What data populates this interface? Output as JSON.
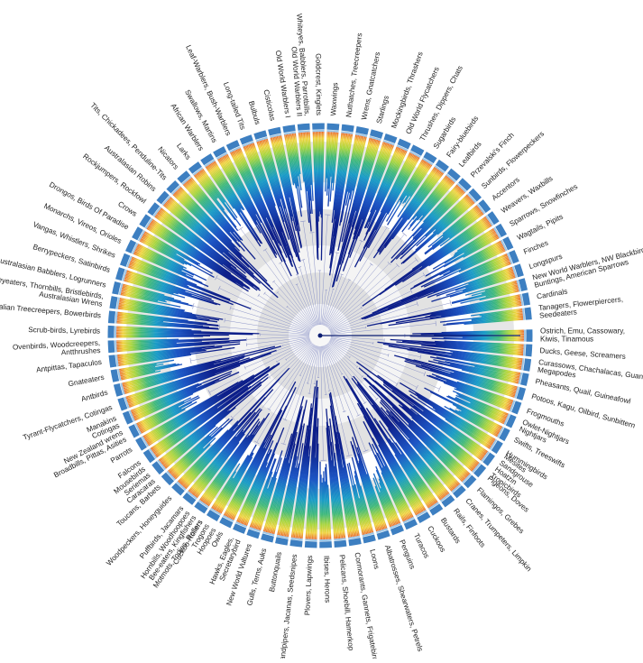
{
  "figure": {
    "colors": {
      "ring_band": "#3d7fc1",
      "ring_inner": "#9ec7e6",
      "background_ring": "#dedede",
      "branch_dark": "#0b1d72",
      "branch_light": "#8d95c8",
      "tip_gradient": [
        "#0d1f8a",
        "#1c55c4",
        "#1a9cc7",
        "#3fb97a",
        "#a9d63b",
        "#f0d23b",
        "#f39a2b",
        "#e6502a"
      ]
    },
    "clades": [
      {
        "label": "Ostrich, Emu, Cassowary, Kiwis, Tinamous",
        "lines": [
          "Ostrich, Emu, Cassowary,",
          "Kiwis, Tinamous"
        ]
      },
      {
        "label": "Ducks, Geese, Screamers",
        "lines": [
          "Ducks, Geese, Screamers"
        ]
      },
      {
        "label": "Curassows, Chachalacas, Guans, Megapodes",
        "lines": [
          "Curassows, Chachalacas, Guans",
          "Megapodes"
        ]
      },
      {
        "label": "Pheasants, Quail, Guineafowl",
        "lines": [
          "Pheasants, Quail, Guineafowl"
        ]
      },
      {
        "label": "Potoos, Kagu, Oilbird, Sunbittern",
        "lines": [
          "Potoos, Kagu, Oilbird, Sunbittern"
        ]
      },
      {
        "label": "Frogmouths",
        "lines": [
          "Frogmouths"
        ]
      },
      {
        "label": "Owlet-Nightjars, Nightjars",
        "lines": [
          "Owlet-Nightjars",
          "Nightjars"
        ]
      },
      {
        "label": "Swifts, Treeswifts",
        "lines": [
          "Swifts, Treeswifts"
        ]
      },
      {
        "label": "Hummingbirds",
        "lines": [
          "Hummingbirds"
        ]
      },
      {
        "label": "Mesites, Sandgrouse, Hoatzin, Tropicbirds",
        "lines": [
          "Mesites",
          "Sandgrouse",
          "Hoatzin",
          "Tropicbirds"
        ]
      },
      {
        "label": "Pigeons, Doves",
        "lines": [
          "Pigeons, Doves"
        ]
      },
      {
        "label": "Flamingos, Grebes",
        "lines": [
          "Flamingos, Grebes"
        ]
      },
      {
        "label": "Cranes, Trumpeters, Limpkin",
        "lines": [
          "Cranes, Trumpeters, Limpkin"
        ]
      },
      {
        "label": "Rails, Finfoots",
        "lines": [
          "Rails, Finfoots"
        ]
      },
      {
        "label": "Bustards",
        "lines": [
          "Bustards"
        ]
      },
      {
        "label": "Cuckoos",
        "lines": [
          "Cuckoos"
        ]
      },
      {
        "label": "Turacos",
        "lines": [
          "Turacos"
        ]
      },
      {
        "label": "Penguins",
        "lines": [
          "Penguins"
        ]
      },
      {
        "label": "Albatrosses, Shearwaters, Petrels",
        "lines": [
          "Albatrosses, Shearwaters, Petrels"
        ]
      },
      {
        "label": "Loons",
        "lines": [
          "Loons"
        ]
      },
      {
        "label": "Cormorants, Gannets, Frigatebirds",
        "lines": [
          "Cormorants, Gannets, Frigatebirds"
        ]
      },
      {
        "label": "Pelicans, Shoebill, Hamerkop",
        "lines": [
          "Pelicans, Shoebill, Hamerkop"
        ]
      },
      {
        "label": "Ibises, Herons",
        "lines": [
          "Ibises, Herons"
        ]
      },
      {
        "label": "Plovers, Lapwings",
        "lines": [
          "Plovers, Lapwings"
        ]
      },
      {
        "label": "Sandpipers, Jacanas, Seedsnipes",
        "lines": [
          "Sandpipers, Jacanas, Seedsnipes"
        ]
      },
      {
        "label": "Buttonquails",
        "lines": [
          "Buttonquails"
        ]
      },
      {
        "label": "Gulls, Terns, Auks",
        "lines": [
          "Gulls, Terns, Auks"
        ]
      },
      {
        "label": "New World Vultures",
        "lines": [
          "New World Vultures"
        ]
      },
      {
        "label": "Hawks, Eagles, Secretarybird",
        "lines": [
          "Hawks, Eagles,",
          "Secretarybird"
        ]
      },
      {
        "label": "Owls",
        "lines": [
          "Owls"
        ]
      },
      {
        "label": "Cuckoo-Rollers, Trogons, Hoopoes",
        "lines": [
          "Cuckoo-Rollers",
          "Trogons",
          "Hoopoes"
        ]
      },
      {
        "label": "Hornbills, Woodhoopoes, Bee-eaters, Kingfishers, Motmots, Todies, Rollers",
        "lines": [
          "Hornbills, Woodhoopoes",
          "Bee-eaters, Kingfishers",
          "Motmots, Todies, Rollers"
        ]
      },
      {
        "label": "Puffbirds, Jacamars",
        "lines": [
          "Puffbirds, Jacamars"
        ]
      },
      {
        "label": "Woodpeckers, Honeyguides",
        "lines": [
          "Woodpeckers, Honeyguides"
        ]
      },
      {
        "label": "Toucans, Barbets",
        "lines": [
          "Toucans, Barbets"
        ]
      },
      {
        "label": "Mousebirds, Seriemas, Caracaras",
        "lines": [
          "Mousebirds",
          "Seriemas",
          "Caracaras"
        ]
      },
      {
        "label": "Falcons",
        "lines": [
          "Falcons"
        ]
      },
      {
        "label": "Parrots",
        "lines": [
          "Parrots"
        ]
      },
      {
        "label": "New Zealand wrens, Broadbills, Pittas, Asities",
        "lines": [
          "New Zealand wrens",
          "Broadbills, Pittas, Asities"
        ]
      },
      {
        "label": "Manakins, Cotingas",
        "lines": [
          "Manakins",
          "Cotingas"
        ]
      },
      {
        "label": "Tyrant-Flycatchers, Cotingas",
        "lines": [
          "Tyrant-Flycatchers, Cotingas"
        ]
      },
      {
        "label": "Antbirds",
        "lines": [
          "Antbirds"
        ]
      },
      {
        "label": "Gnateaters",
        "lines": [
          "Gnateaters"
        ]
      },
      {
        "label": "Antpittas, Tapaculos",
        "lines": [
          "Antpittas, Tapaculos"
        ]
      },
      {
        "label": "Ovenbirds, Woodcreepers, Antthrushes",
        "lines": [
          "Ovenbirds, Woodcreepers,",
          "Antthrushes"
        ]
      },
      {
        "label": "Scrub-birds, Lyrebirds",
        "lines": [
          "Scrub-birds, Lyrebirds"
        ]
      },
      {
        "label": "Australian Treecreepers, Bowerbirds",
        "lines": [
          "Australian Treecreepers, Bowerbirds"
        ]
      },
      {
        "label": "Honeyeaters, Thornbills, Bristlebirds, Australasian Wrens",
        "lines": [
          "Honeyeaters, Thornbills, Bristlebirds,",
          "Australasian Wrens"
        ]
      },
      {
        "label": "Australasian Babblers, Logrunners",
        "lines": [
          "Australasian Babblers, Logrunners"
        ]
      },
      {
        "label": "Berrypeckers, Satinbirds",
        "lines": [
          "Berrypeckers, Satinbirds"
        ]
      },
      {
        "label": "Vangas, Whistlers, Shrikes",
        "lines": [
          "Vangas, Whistlers, Shrikes"
        ]
      },
      {
        "label": "Monarchs, Vireos, Orioles",
        "lines": [
          "Monarchs, Vireos, Orioles"
        ]
      },
      {
        "label": "Drongos, Birds Of Paradise",
        "lines": [
          "Drongos, Birds Of Paradise"
        ]
      },
      {
        "label": "Crows",
        "lines": [
          "Crows"
        ]
      },
      {
        "label": "Rockjumpers, Rockfowl",
        "lines": [
          "Rockjumpers, Rockfowl"
        ]
      },
      {
        "label": "Australasian Robins",
        "lines": [
          "Australasian Robins"
        ]
      },
      {
        "label": "Tits, Chickadees, Penduline-Tits",
        "lines": [
          "Tits, Chickadees, Penduline-Tits"
        ]
      },
      {
        "label": "Nicators",
        "lines": [
          "Nicators"
        ]
      },
      {
        "label": "Larks",
        "lines": [
          "Larks"
        ]
      },
      {
        "label": "African Warblers",
        "lines": [
          "African Warblers"
        ]
      },
      {
        "label": "Swallows, Martins",
        "lines": [
          "Swallows, Martins"
        ]
      },
      {
        "label": "Leaf-Warblers, Bush-Warblers",
        "lines": [
          "Leaf-Warblers, Bush-Warblers"
        ]
      },
      {
        "label": "Long-tailed Tits",
        "lines": [
          "Long-tailed Tits"
        ]
      },
      {
        "label": "Bulbuls",
        "lines": [
          "Bulbuls"
        ]
      },
      {
        "label": "Cisticolas",
        "lines": [
          "Cisticolas"
        ]
      },
      {
        "label": "Old World Warblers I",
        "lines": [
          "Old World Warblers I"
        ]
      },
      {
        "label": "Whiteyes, Babblers, Parrotbills, Old World Warblers II",
        "lines": [
          "Whiteyes, Babblers, Parrotbills,",
          "Old World Warblers II"
        ]
      },
      {
        "label": "Goldcrest, Kinglets",
        "lines": [
          "Goldcrest, Kinglets"
        ]
      },
      {
        "label": "Waxwings",
        "lines": [
          "Waxwings"
        ]
      },
      {
        "label": "Nuthatches, Treecreepers",
        "lines": [
          "Nuthatches, Treecreepers"
        ]
      },
      {
        "label": "Wrens, Gnatcatchers",
        "lines": [
          "Wrens, Gnatcatchers"
        ]
      },
      {
        "label": "Starlings",
        "lines": [
          "Starlings"
        ]
      },
      {
        "label": "Mockingbirds, Thrashers",
        "lines": [
          "Mockingbirds, Thrashers"
        ]
      },
      {
        "label": "Old World Flycatchers",
        "lines": [
          "Old World Flycatchers"
        ]
      },
      {
        "label": "Thrushes, Dippers, Chats",
        "lines": [
          "Thrushes, Dippers, Chats"
        ]
      },
      {
        "label": "Sugarbirds",
        "lines": [
          "Sugarbirds"
        ]
      },
      {
        "label": "Fairy-bluebirds",
        "lines": [
          "Fairy-bluebirds"
        ]
      },
      {
        "label": "Leafbirds",
        "lines": [
          "Leafbirds"
        ]
      },
      {
        "label": "Przevalski's Finch",
        "lines": [
          "Przevalski's Finch"
        ]
      },
      {
        "label": "Sunbirds, Flowerpeckers",
        "lines": [
          "Sunbirds, Flowerpeckers"
        ]
      },
      {
        "label": "Accentors",
        "lines": [
          "Accentors"
        ]
      },
      {
        "label": "Weavers, Waxbills",
        "lines": [
          "Weavers, Waxbills"
        ]
      },
      {
        "label": "Sparrows, Snowfinches",
        "lines": [
          "Sparrows, Snowfinches"
        ]
      },
      {
        "label": "Wagtails, Pipits",
        "lines": [
          "Wagtails, Pipits"
        ]
      },
      {
        "label": "Finches",
        "lines": [
          "Finches"
        ]
      },
      {
        "label": "Longspurs",
        "lines": [
          "Longspurs"
        ]
      },
      {
        "label": "New World Warblers, NW Blackbirds, Buntings, American Sparrows",
        "lines": [
          "New World Warblers, NW Blackbirds,",
          "Buntings, American Sparrows"
        ]
      },
      {
        "label": "Cardinals",
        "lines": [
          "Cardinals"
        ]
      },
      {
        "label": "Tanagers, Flowerpiercers, Seedeaters",
        "lines": [
          "Tanagers, Flowerpiercers,",
          "Seedeaters"
        ]
      }
    ]
  }
}
